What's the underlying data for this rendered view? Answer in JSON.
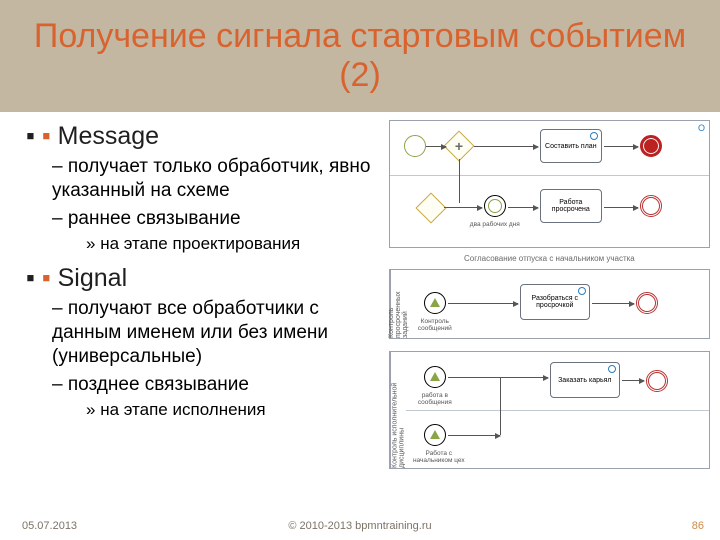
{
  "colors": {
    "title_bg": "#c3b7a2",
    "title_text": "#d9632e",
    "bullet_marker": "#d9632e",
    "body_text": "#1f1f1f",
    "footer_text": "#7c7265",
    "page_num": "#cf8a49",
    "green": "#8aa545",
    "diagram_border": "#9aa3ad"
  },
  "title": "Получение сигнала стартовым событием (2)",
  "bullets": [
    {
      "hdr": "Message",
      "sub": [
        {
          "t": "получает только обработчик,  явно указанный на схеме"
        },
        {
          "t": "раннее связывание",
          "sub2": [
            "на этапе проектирования"
          ]
        }
      ]
    },
    {
      "hdr": "Signal",
      "sub": [
        {
          "t": "получают все обработчики с данным именем или без имени (универсальные)"
        },
        {
          "t": "позднее связывание",
          "sub2": [
            "на этапе исполнения"
          ]
        }
      ]
    }
  ],
  "footer": {
    "date": "05.07.2013",
    "copy": "© 2010-2013 bpmntraining.ru",
    "page": "86"
  },
  "diagram": {
    "pane1": {
      "corner_label": "О",
      "tasks": {
        "t1": "Составить план",
        "t2": "два рабочих дня",
        "t3": "Работа просрочена"
      }
    },
    "mid_caption": "Согласование отпуска с начальником участка",
    "pane2": {
      "pool": "Контроль просроченных заданий",
      "tasks": {
        "t1": "Контроль сообщений",
        "t2": "Разобраться с просрочкой"
      }
    },
    "pane3": {
      "pool": "Контроль исполнительной дисциплины",
      "tasks": {
        "t1": "работа в сообщения",
        "t2": "Работа с начальником цех",
        "t3": "Заказать карьял"
      }
    }
  }
}
